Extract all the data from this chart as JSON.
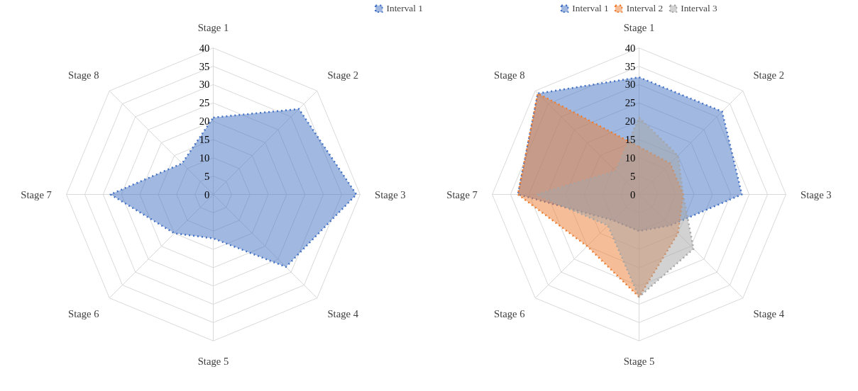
{
  "chart_data": [
    {
      "type": "radar",
      "categories": [
        "Stage 1",
        "Stage 2",
        "Stage 3",
        "Stage 4",
        "Stage 5",
        "Stage 6",
        "Stage 7",
        "Stage 8"
      ],
      "ylim": [
        0,
        40
      ],
      "yticks": [
        0,
        5,
        10,
        15,
        20,
        25,
        30,
        35,
        40
      ],
      "grid": true,
      "legend": "top right",
      "line_style": "dotted",
      "series": [
        {
          "name": "Interval 1",
          "color": "#4472c4",
          "values": [
            21,
            33,
            39,
            28,
            12,
            15,
            28,
            12
          ]
        }
      ]
    },
    {
      "type": "radar",
      "categories": [
        "Stage 1",
        "Stage 2",
        "Stage 3",
        "Stage 4",
        "Stage 5",
        "Stage 6",
        "Stage 7",
        "Stage 8"
      ],
      "ylim": [
        0,
        40
      ],
      "yticks": [
        0,
        5,
        10,
        15,
        20,
        25,
        30,
        35,
        40
      ],
      "grid": true,
      "legend": "top",
      "line_style": "dotted",
      "series": [
        {
          "name": "Interval 1",
          "color": "#4472c4",
          "values": [
            32,
            32,
            28,
            12,
            10,
            10,
            33,
            39
          ]
        },
        {
          "name": "Interval 2",
          "color": "#ed7d31",
          "values": [
            13,
            12,
            12,
            15,
            28,
            20,
            33,
            39
          ]
        },
        {
          "name": "Interval 3",
          "color": "#a5a5a5",
          "values": [
            21,
            15,
            12,
            21,
            28,
            12,
            28,
            9
          ]
        }
      ]
    }
  ]
}
